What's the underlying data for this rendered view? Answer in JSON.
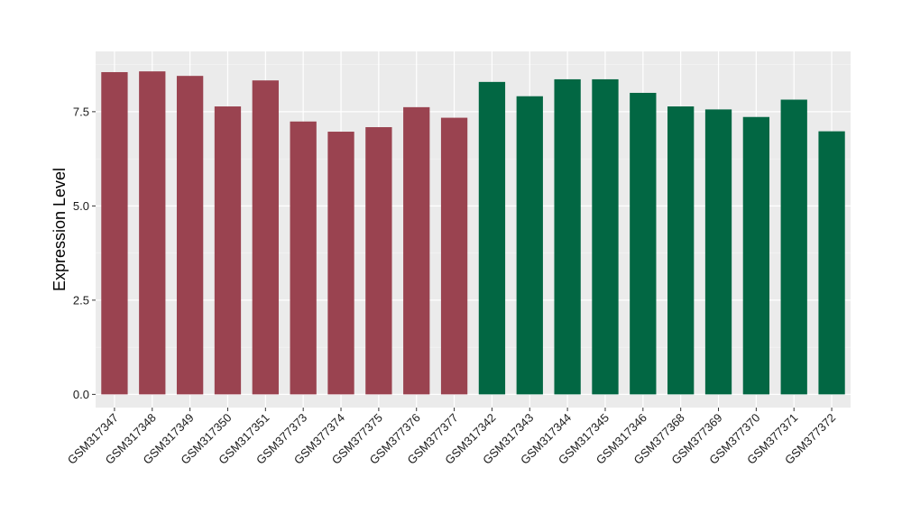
{
  "chart_data": {
    "type": "bar",
    "title": "",
    "xlabel": "",
    "ylabel": "Expression Level",
    "ylim": [
      -0.35,
      9.1
    ],
    "yticks": [
      0.0,
      2.5,
      5.0,
      7.5
    ],
    "ytick_labels": [
      "0.0",
      "2.5",
      "5.0",
      "7.5"
    ],
    "grid": true,
    "legend": "none",
    "colors": {
      "panel_background": "#ebebeb",
      "grid_major": "#ffffff",
      "group_a": "#9a4350",
      "group_b": "#026743"
    },
    "categories": [
      "GSM317347",
      "GSM317348",
      "GSM317349",
      "GSM317350",
      "GSM317351",
      "GSM377373",
      "GSM377374",
      "GSM377375",
      "GSM377376",
      "GSM377377",
      "GSM317342",
      "GSM317343",
      "GSM317344",
      "GSM317345",
      "GSM317346",
      "GSM377368",
      "GSM377369",
      "GSM377370",
      "GSM377371",
      "GSM377372"
    ],
    "values": [
      8.55,
      8.57,
      8.45,
      7.64,
      8.33,
      7.24,
      6.97,
      7.09,
      7.62,
      7.34,
      8.29,
      7.91,
      8.36,
      8.36,
      8.0,
      7.64,
      7.56,
      7.36,
      7.82,
      6.98
    ],
    "bar_groups": [
      "a",
      "a",
      "a",
      "a",
      "a",
      "a",
      "a",
      "a",
      "a",
      "a",
      "b",
      "b",
      "b",
      "b",
      "b",
      "b",
      "b",
      "b",
      "b",
      "b"
    ]
  }
}
